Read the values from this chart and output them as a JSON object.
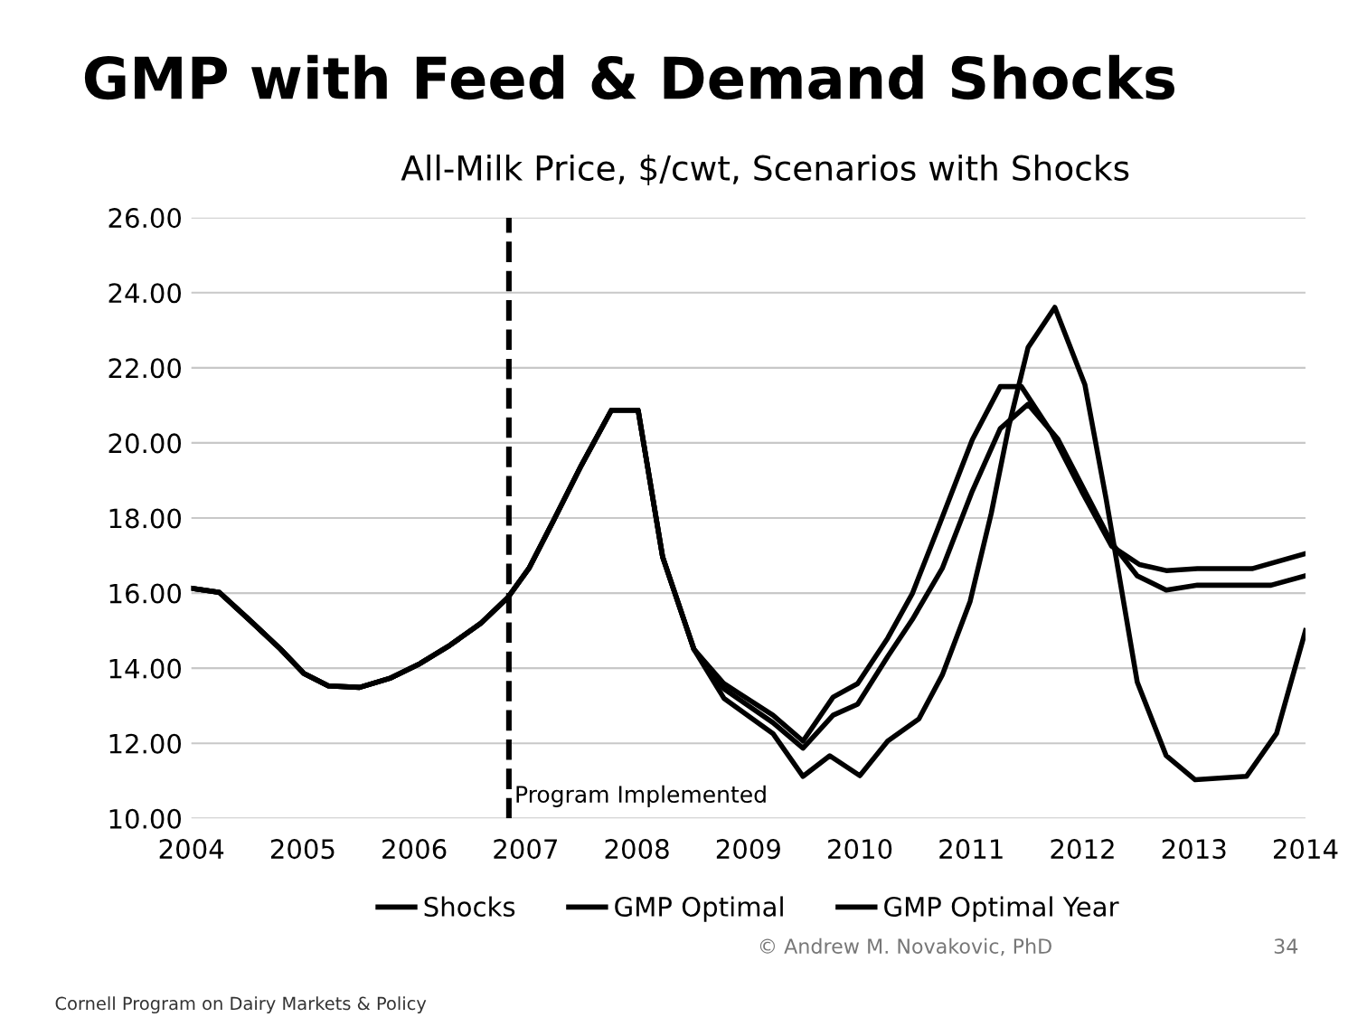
{
  "chart_data": {
    "type": "line",
    "title": "GMP with Feed & Demand Shocks",
    "subtitle": "All-Milk Price, $/cwt, Scenarios with Shocks",
    "xlim": [
      2004,
      2014
    ],
    "xticks": [
      2004,
      2005,
      2006,
      2007,
      2008,
      2009,
      2010,
      2011,
      2012,
      2013,
      2014
    ],
    "ylim": [
      10,
      26
    ],
    "yticks": [
      {
        "value": 10,
        "label": "10.00"
      },
      {
        "value": 12,
        "label": "12.00"
      },
      {
        "value": 14,
        "label": "14.00"
      },
      {
        "value": 16,
        "label": "16.00"
      },
      {
        "value": 18,
        "label": "18.00"
      },
      {
        "value": 20,
        "label": "20.00"
      },
      {
        "value": 22,
        "label": "22.00"
      },
      {
        "value": 24,
        "label": "24.00"
      },
      {
        "value": 26,
        "label": "26.00"
      }
    ],
    "grid": "y",
    "legend": "bottom",
    "marker": "none",
    "line_style": "solid",
    "ref_lines": [
      {
        "axis": "x",
        "value": 2006.85,
        "label": "Program Implemented",
        "color": "#000000",
        "line_style": "dashed"
      }
    ],
    "annotations": [
      "Cornell Program on Dairy Markets & Policy",
      "© Andrew M. Novakovic, PhD",
      "34"
    ],
    "series": [
      {
        "name": "Shocks",
        "color": "#000000",
        "x": [
          2004.0,
          2004.25,
          2004.52,
          2004.8,
          2005.01,
          2005.23,
          2005.51,
          2005.78,
          2006.05,
          2006.32,
          2006.6,
          2006.84,
          2007.03,
          2007.25,
          2007.5,
          2007.77,
          2008.01,
          2008.23,
          2008.51,
          2008.78,
          2009.22,
          2009.49,
          2009.73,
          2010.0,
          2010.25,
          2010.53,
          2010.74,
          2010.99,
          2011.18,
          2011.34,
          2011.51,
          2011.75,
          2012.02,
          2012.21,
          2012.49,
          2012.75,
          2013.01,
          2013.47,
          2013.74,
          2014.0
        ],
        "values": [
          16.13,
          16.02,
          15.29,
          14.51,
          13.86,
          13.53,
          13.49,
          13.73,
          14.12,
          14.61,
          15.2,
          15.88,
          16.66,
          17.93,
          19.4,
          20.87,
          20.87,
          16.96,
          14.51,
          13.2,
          12.26,
          11.12,
          11.67,
          11.14,
          12.06,
          12.65,
          13.82,
          15.78,
          18.13,
          20.48,
          22.54,
          23.61,
          21.55,
          18.52,
          13.63,
          11.67,
          11.03,
          11.12,
          12.26,
          15.0
        ]
      },
      {
        "name": "GMP Optimal",
        "color": "#000000",
        "x": [
          2004.0,
          2004.25,
          2004.52,
          2004.8,
          2005.01,
          2005.23,
          2005.51,
          2005.78,
          2006.05,
          2006.32,
          2006.6,
          2006.84,
          2007.03,
          2007.25,
          2007.5,
          2007.77,
          2008.01,
          2008.23,
          2008.51,
          2008.78,
          2009.22,
          2009.49,
          2009.76,
          2009.98,
          2010.25,
          2010.47,
          2010.69,
          2011.01,
          2011.26,
          2011.45,
          2011.72,
          2011.99,
          2012.26,
          2012.51,
          2012.75,
          2013.03,
          2013.52,
          2014.0
        ],
        "values": [
          16.13,
          16.02,
          15.29,
          14.51,
          13.86,
          13.53,
          13.49,
          13.73,
          14.12,
          14.61,
          15.2,
          15.88,
          16.66,
          17.93,
          19.4,
          20.87,
          20.87,
          16.96,
          14.51,
          13.59,
          12.75,
          12.06,
          13.23,
          13.59,
          14.8,
          15.98,
          17.64,
          20.09,
          21.5,
          21.5,
          20.28,
          18.72,
          17.25,
          16.76,
          16.6,
          16.65,
          16.65,
          17.05
        ]
      },
      {
        "name": "GMP Optimal Year",
        "color": "#000000",
        "x": [
          2004.0,
          2004.25,
          2004.52,
          2004.8,
          2005.01,
          2005.23,
          2005.51,
          2005.78,
          2006.05,
          2006.32,
          2006.6,
          2006.84,
          2007.03,
          2007.25,
          2007.5,
          2007.77,
          2008.01,
          2008.23,
          2008.51,
          2008.78,
          2009.22,
          2009.49,
          2009.76,
          2009.98,
          2010.25,
          2010.47,
          2010.74,
          2011.01,
          2011.26,
          2011.51,
          2011.78,
          2012.26,
          2012.49,
          2012.75,
          2013.03,
          2013.69,
          2014.0
        ],
        "values": [
          16.13,
          16.02,
          15.29,
          14.51,
          13.86,
          13.53,
          13.49,
          13.73,
          14.12,
          14.61,
          15.2,
          15.88,
          16.66,
          17.93,
          19.4,
          20.87,
          20.87,
          16.96,
          14.51,
          13.45,
          12.55,
          11.87,
          12.75,
          13.04,
          14.31,
          15.29,
          16.66,
          18.72,
          20.38,
          21.03,
          20.09,
          17.34,
          16.46,
          16.08,
          16.21,
          16.21,
          16.46
        ]
      }
    ]
  }
}
